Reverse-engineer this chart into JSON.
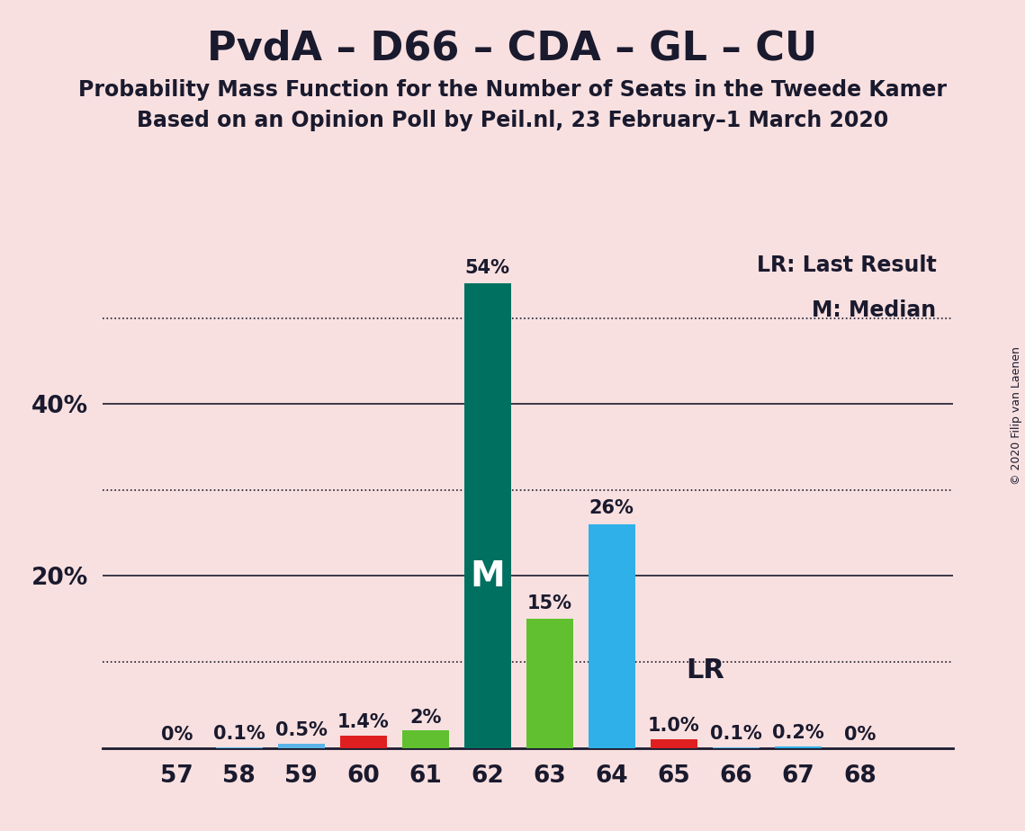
{
  "title": "PvdA – D66 – CDA – GL – CU",
  "subtitle1": "Probability Mass Function for the Number of Seats in the Tweede Kamer",
  "subtitle2": "Based on an Opinion Poll by Peil.nl, 23 February–1 March 2020",
  "copyright": "© 2020 Filip van Laenen",
  "legend_lr": "LR: Last Result",
  "legend_m": "M: Median",
  "background_color": "#f9e0e0",
  "categories": [
    57,
    58,
    59,
    60,
    61,
    62,
    63,
    64,
    65,
    66,
    67,
    68
  ],
  "values": [
    0.0,
    0.1,
    0.5,
    1.4,
    2.0,
    54.0,
    15.0,
    26.0,
    1.0,
    0.1,
    0.2,
    0.0
  ],
  "bar_colors": [
    "#5ab4e8",
    "#5ab4e8",
    "#5ab4e8",
    "#e02020",
    "#60c030",
    "#007060",
    "#60c030",
    "#30b0e8",
    "#e02020",
    "#5ab4e8",
    "#30b0e8",
    "#5ab4e8"
  ],
  "label_texts": [
    "0%",
    "0.1%",
    "0.5%",
    "1.4%",
    "2%",
    "54%",
    "15%",
    "26%",
    "1.0%",
    "0.1%",
    "0.2%",
    "0%"
  ],
  "median_bar": 62,
  "lr_bar": 65,
  "ylim_max": 58,
  "dotted_yticks": [
    10,
    30,
    50
  ],
  "solid_yticks": [
    20,
    40
  ],
  "ytick_positions": [
    20,
    40
  ],
  "ytick_labels": [
    "20%",
    "40%"
  ],
  "axis_color": "#1a1a2e",
  "bar_width": 0.75,
  "label_fontsize": 15,
  "tick_fontsize": 19,
  "legend_fontsize": 17,
  "title_fontsize": 32,
  "subtitle_fontsize": 17,
  "m_fontsize": 28,
  "lr_fontsize": 22
}
